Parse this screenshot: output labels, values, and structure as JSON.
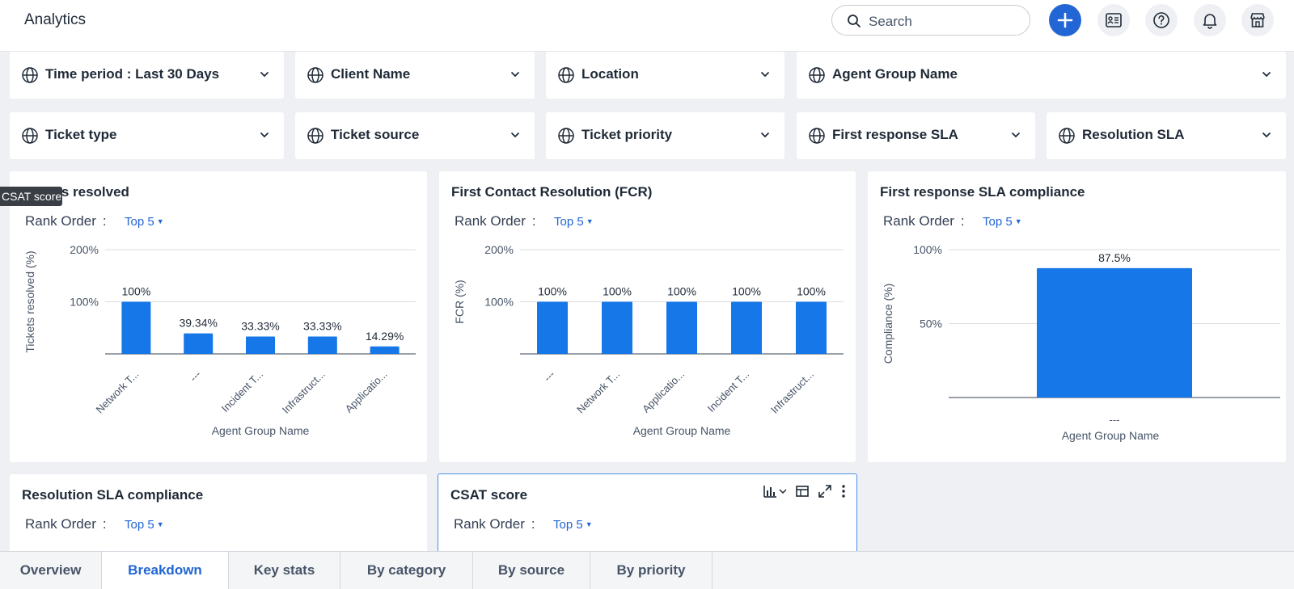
{
  "app": {
    "title": "Analytics"
  },
  "search": {
    "placeholder": "Search"
  },
  "colors": {
    "accent": "#2265d4",
    "bar": "#1677e8"
  },
  "filters_row1": [
    {
      "label": "Time period :  Last 30 Days"
    },
    {
      "label": "Client Name"
    },
    {
      "label": "Location"
    },
    {
      "label": "Agent Group Name"
    }
  ],
  "filters_row2": [
    {
      "label": "Ticket type"
    },
    {
      "label": "Ticket source"
    },
    {
      "label": "Ticket priority"
    },
    {
      "label": "First response SLA"
    },
    {
      "label": "Resolution SLA"
    }
  ],
  "tooltip": {
    "text": "CSAT score"
  },
  "rank_order": {
    "label": "Rank Order",
    "sep": ":",
    "value": "Top 5"
  },
  "cards": {
    "resolution_sla": {
      "title": "Resolution SLA compliance"
    },
    "csat": {
      "title": "CSAT score"
    }
  },
  "chart_data": [
    {
      "type": "bar",
      "title": "Tickets resolved",
      "categories": [
        "Network T...",
        "---",
        "Incident T...",
        "Infrastruct...",
        "Applicatio..."
      ],
      "values": [
        100,
        39.34,
        33.33,
        33.33,
        14.29
      ],
      "value_labels": [
        "100%",
        "39.34%",
        "33.33%",
        "33.33%",
        "14.29%"
      ],
      "xlabel": "Agent Group Name",
      "ylabel": "Tickets resolved (%)",
      "ylim": [
        0,
        200
      ],
      "yticks": [
        100,
        200
      ],
      "ytick_labels": [
        "100%",
        "200%"
      ]
    },
    {
      "type": "bar",
      "title": "First Contact Resolution (FCR)",
      "categories": [
        "---",
        "Network T...",
        "Applicatio...",
        "Incident T...",
        "Infrastruct..."
      ],
      "values": [
        100,
        100,
        100,
        100,
        100
      ],
      "value_labels": [
        "100%",
        "100%",
        "100%",
        "100%",
        "100%"
      ],
      "xlabel": "Agent Group Name",
      "ylabel": "FCR (%)",
      "ylim": [
        0,
        200
      ],
      "yticks": [
        100,
        200
      ],
      "ytick_labels": [
        "100%",
        "200%"
      ]
    },
    {
      "type": "bar",
      "title": "First response SLA compliance",
      "categories": [
        "---"
      ],
      "values": [
        87.5
      ],
      "value_labels": [
        "87.5%"
      ],
      "xlabel": "Agent Group Name",
      "ylabel": "Compliance (%)",
      "ylim": [
        0,
        100
      ],
      "yticks": [
        50,
        100
      ],
      "ytick_labels": [
        "50%",
        "100%"
      ]
    }
  ],
  "tabs": [
    {
      "label": "Overview",
      "active": false
    },
    {
      "label": "Breakdown",
      "active": true
    },
    {
      "label": "Key stats",
      "active": false
    },
    {
      "label": "By category",
      "active": false
    },
    {
      "label": "By source",
      "active": false
    },
    {
      "label": "By priority",
      "active": false
    }
  ]
}
